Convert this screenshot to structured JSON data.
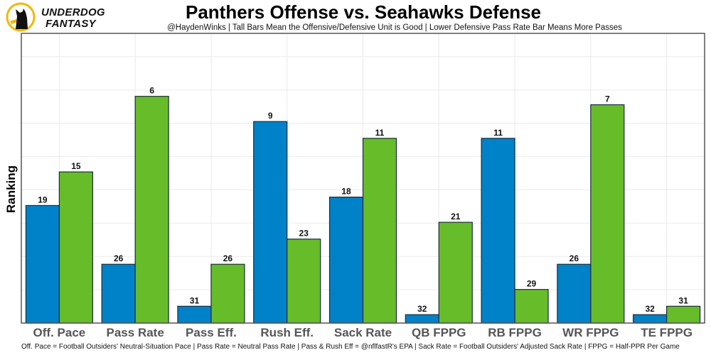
{
  "brand": {
    "line1": "UNDERDOG",
    "line2": "FANTASY",
    "accent": "#f2b705"
  },
  "header": {
    "title": "Panthers Offense vs. Seahawks Defense",
    "subtitle": "@HaydenWinks | Tall Bars Mean the Offensive/Defensive Unit is Good | Lower Defensive Pass Rate Bar Means More Passes"
  },
  "footer": "Off. Pace = Football Outsiders' Neutral-Situation Pace | Pass Rate = Neutral Pass Rate | Pass & Rush Eff = @nflfastR's EPA | Sack Rate = Football Outsiders' Adjusted Sack Rate | FPPG = Half-PPR Per Game",
  "chart_data": {
    "type": "bar",
    "title": "Panthers Offense vs. Seahawks Defense",
    "xlabel": "",
    "ylabel": "Ranking",
    "categories": [
      "Off. Pace",
      "Pass Rate",
      "Pass Eff.",
      "Rush Eff.",
      "Sack Rate",
      "QB FPPG",
      "RB FPPG",
      "WR FPPG",
      "TE FPPG"
    ],
    "series": [
      {
        "name": "Panthers Offense",
        "color": "#0082c8",
        "values": [
          19,
          26,
          31,
          9,
          18,
          32,
          11,
          26,
          32
        ]
      },
      {
        "name": "Seahawks Defense",
        "color": "#67bc29",
        "values": [
          15,
          6,
          26,
          23,
          11,
          21,
          29,
          7,
          31
        ]
      }
    ],
    "value_encoding": "bar height = 33 - ranking (rank 1 tallest, rank 32 shortest)",
    "ylim": [
      0,
      34.5
    ],
    "grid": true,
    "legend": "none"
  }
}
